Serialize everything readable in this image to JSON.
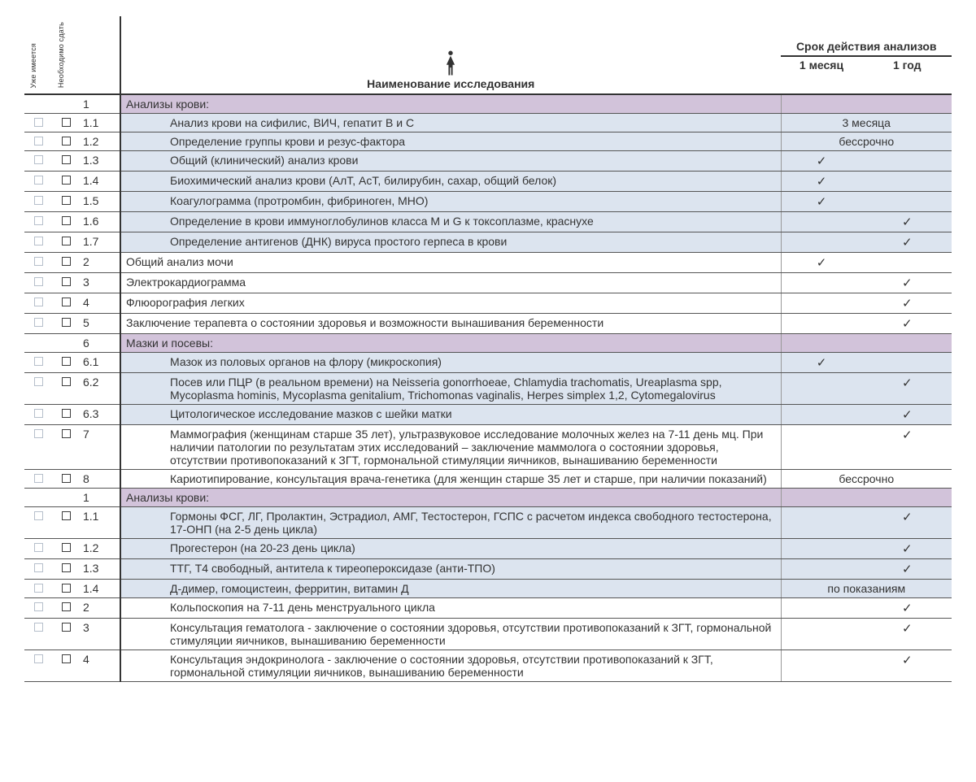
{
  "headers": {
    "have": "Уже имеется",
    "need": "Необходимо сдать",
    "title": "Наименование исследования",
    "validity": "Срок действия анализов",
    "month1": "1 месяц",
    "year1": "1 год"
  },
  "rows": [
    {
      "type": "section",
      "num": "1",
      "name": "Анализы крови:"
    },
    {
      "type": "item",
      "bg": "blue",
      "indent": true,
      "num": "1.1",
      "name": "Анализ крови на сифилис, ВИЧ, гепатит В и С",
      "span": "3 месяца"
    },
    {
      "type": "item",
      "bg": "blue",
      "indent": true,
      "num": "1.2",
      "name": "Определение группы крови и резус-фактора",
      "span": "бессрочно"
    },
    {
      "type": "item",
      "bg": "blue",
      "indent": true,
      "num": "1.3",
      "name": "Общий (клинический) анализ крови",
      "m1": true
    },
    {
      "type": "item",
      "bg": "blue",
      "indent": true,
      "num": "1.4",
      "name": "Биохимический анализ крови (АлТ, АсТ, билирубин, сахар, общий белок)",
      "m1": true
    },
    {
      "type": "item",
      "bg": "blue",
      "indent": true,
      "num": "1.5",
      "name": "Коагулограмма (протромбин, фибриноген, МНО)",
      "m1": true
    },
    {
      "type": "item",
      "bg": "blue",
      "indent": true,
      "num": "1.6",
      "name": "Определение в крови иммуноглобулинов класса M и G к токсоплазме, краснухе",
      "y1": true
    },
    {
      "type": "item",
      "bg": "blue",
      "indent": true,
      "num": "1.7",
      "name": "Определение антигенов (ДНК) вируса простого герпеса в крови",
      "y1": true
    },
    {
      "type": "item",
      "num": "2",
      "name": "Общий анализ мочи",
      "m1": true
    },
    {
      "type": "item",
      "num": "3",
      "name": "Электрокардиограмма",
      "y1": true
    },
    {
      "type": "item",
      "num": "4",
      "name": "Флюорография легких",
      "y1": true
    },
    {
      "type": "item",
      "num": "5",
      "name": "Заключение терапевта о состоянии здоровья и возможности вынашивания беременности",
      "y1": true
    },
    {
      "type": "section",
      "num": "6",
      "name": "Мазки и посевы:"
    },
    {
      "type": "item",
      "bg": "blue",
      "indent": true,
      "num": "6.1",
      "name": "Мазок из половых органов на флору (микроскопия)",
      "m1": true
    },
    {
      "type": "item",
      "bg": "blue",
      "indent": true,
      "num": "6.2",
      "name": "Посев или ПЦР (в реальном времени) на Neisseria gonorrhoeae, Chlamydia trachomatis, Ureaplasma spp, Mycoplasma hominis, Mycoplasma genitalium, Trichomonas vaginalis, Herpes simplex 1,2, Cytomegalovirus",
      "y1": true
    },
    {
      "type": "item",
      "bg": "blue",
      "indent": true,
      "num": "6.3",
      "name": "Цитологическое исследование мазков с шейки матки",
      "y1": true
    },
    {
      "type": "item",
      "indent": true,
      "num": "7",
      "name": "Маммография (женщинам старше 35 лет), ультразвуковое исследование молочных желез на 7-11 день мц. При наличии патологии по результатам этих исследований – заключение маммолога о состоянии здоровья, отсутствии противопоказаний к ЗГТ, гормональной стимуляции яичников, вынашиванию беременности",
      "y1": true
    },
    {
      "type": "item",
      "indent": true,
      "num": "8",
      "name": "Кариотипирование, консультация врача-генетика (для женщин старше 35 лет и старше, при наличии показаний)",
      "span": "бессрочно"
    },
    {
      "type": "section",
      "num": "1",
      "name": "Анализы крови:"
    },
    {
      "type": "item",
      "bg": "blue",
      "indent": true,
      "num": "1.1",
      "name": "Гормоны ФСГ, ЛГ, Пролактин, Эстрадиол, АМГ, Тестостерон, ГСПС с расчетом индекса свободного тестостерона, 17-ОНП (на 2-5 день цикла)",
      "y1": true
    },
    {
      "type": "item",
      "bg": "blue",
      "indent": true,
      "num": "1.2",
      "name": "Прогестерон (на 20-23 день цикла)",
      "y1": true
    },
    {
      "type": "item",
      "bg": "blue",
      "indent": true,
      "num": "1.3",
      "name": "ТТГ, Т4 свободный, антитела к тиреопероксидазе (анти-ТПО)",
      "y1": true
    },
    {
      "type": "item",
      "bg": "blue",
      "indent": true,
      "num": "1.4",
      "name": "Д-димер, гомоцистеин, ферритин, витамин Д",
      "span": "по показаниям"
    },
    {
      "type": "item",
      "indent": true,
      "num": "2",
      "name": "Кольпоскопия на 7-11 день менструального цикла",
      "y1": true
    },
    {
      "type": "item",
      "indent": true,
      "num": "3",
      "name": "Консультация гематолога - заключение о состоянии здоровья, отсутствии противопоказаний к ЗГТ, гормональной стимуляции яичников, вынашиванию беременности",
      "y1": true
    },
    {
      "type": "item",
      "indent": true,
      "num": "4",
      "name": "Консультация эндокринолога - заключение о состоянии здоровья, отсутствии противопоказаний к ЗГТ, гормональной стимуляции яичников, вынашиванию беременности",
      "y1": true
    }
  ],
  "style": {
    "section_bg": "#d2c3da",
    "blue_bg": "#dce4ef",
    "check_glyph": "✓"
  }
}
